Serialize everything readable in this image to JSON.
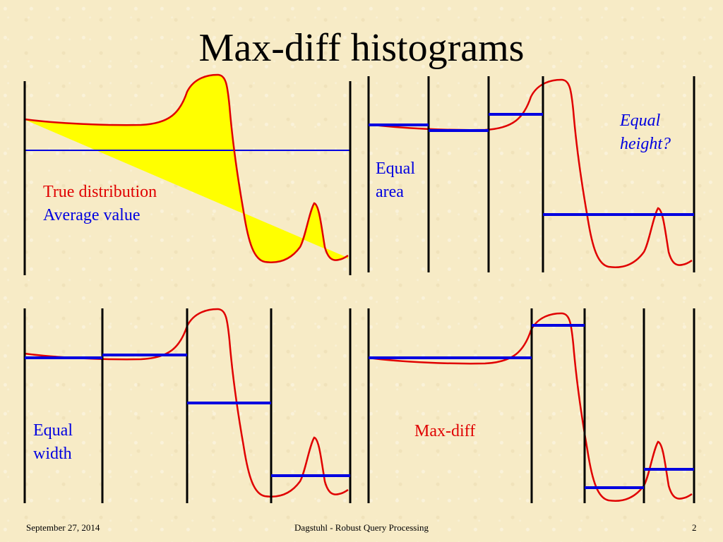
{
  "title": "Max-diff histograms",
  "panels": {
    "true_distribution": {
      "legend_true": "True distribution",
      "legend_average": "Average value"
    },
    "equal_area": {
      "label": [
        "Equal",
        "area"
      ]
    },
    "equal_height": {
      "label": [
        "Equal",
        "height?"
      ]
    },
    "equal_width": {
      "label": [
        "Equal",
        "width"
      ]
    },
    "max_diff": {
      "label": "Max-diff"
    }
  },
  "footer": {
    "date": "September 27, 2014",
    "event": "Dagstuhl - Robust Query Processing",
    "page": "2"
  },
  "colors": {
    "distribution": "#e00000",
    "bucket": "#0000e0",
    "fill": "#ffff00",
    "boundary": "#000000",
    "background": "#f7ebc6"
  }
}
